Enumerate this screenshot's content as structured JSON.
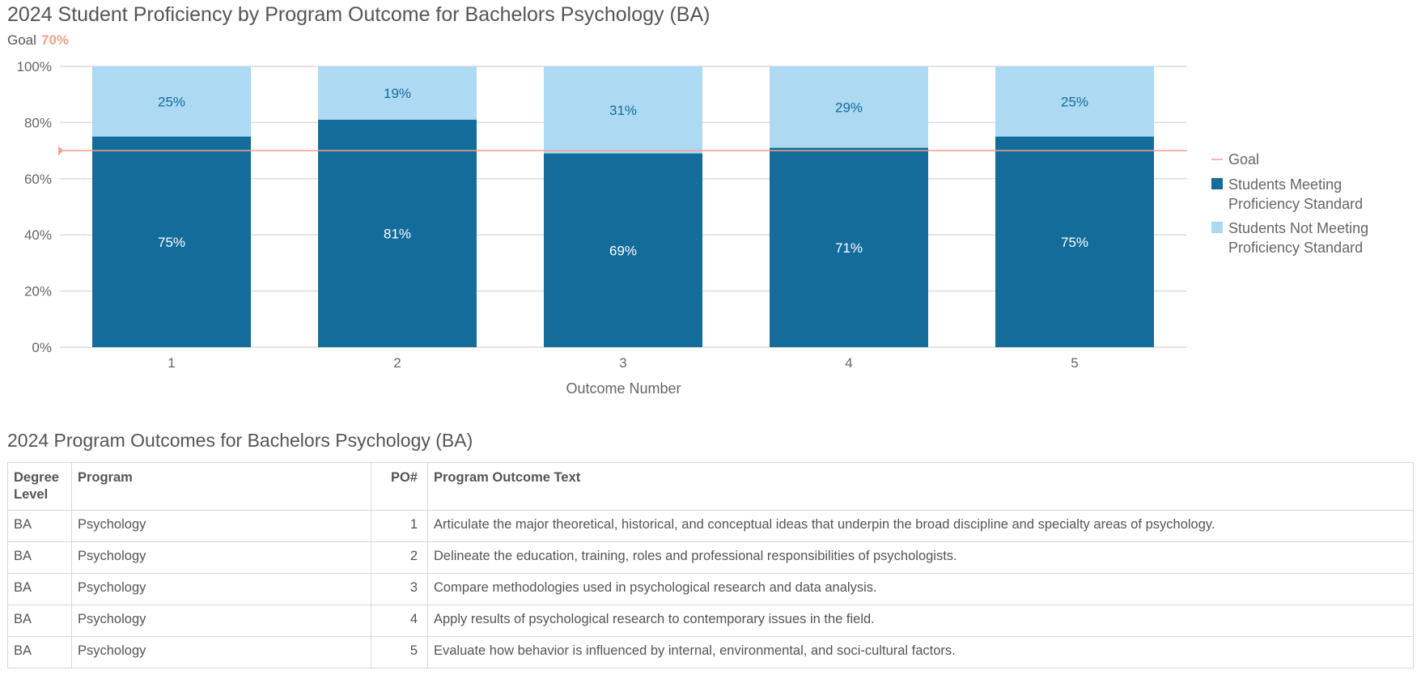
{
  "title": "2024 Student Proficiency by Program Outcome for Bachelors Psychology (BA)",
  "goal": {
    "label": "Goal",
    "value": "70%"
  },
  "colors": {
    "meeting": "#146c9a",
    "not_meeting": "#add9f3",
    "goal": "#f4a08a"
  },
  "chart_data": {
    "type": "bar",
    "stacked": true,
    "categories": [
      "1",
      "2",
      "3",
      "4",
      "5"
    ],
    "xlabel": "Outcome Number",
    "ylabel": "",
    "ylim": [
      0,
      100
    ],
    "yticks": [
      "0%",
      "20%",
      "40%",
      "60%",
      "80%",
      "100%"
    ],
    "grid": true,
    "legend": "right",
    "goal_line": 70,
    "series": [
      {
        "name": "Students Meeting Proficiency Standard",
        "values": [
          75,
          81,
          69,
          71,
          75
        ],
        "labels": [
          "75%",
          "81%",
          "69%",
          "71%",
          "75%"
        ]
      },
      {
        "name": "Students Not Meeting Proficiency Standard",
        "values": [
          25,
          19,
          31,
          29,
          25
        ],
        "labels": [
          "25%",
          "19%",
          "31%",
          "29%",
          "25%"
        ]
      }
    ],
    "legend_entries": [
      "Goal",
      "Students Meeting Proficiency Standard",
      "Students Not Meeting Proficiency Standard"
    ]
  },
  "table": {
    "title": "2024 Program Outcomes for Bachelors Psychology (BA)",
    "headers": [
      "Degree Level",
      "Program",
      "PO#",
      "Program Outcome Text"
    ],
    "rows": [
      [
        "BA",
        "Psychology",
        "1",
        "Articulate the major theoretical, historical, and conceptual ideas that underpin the broad discipline and specialty areas of psychology."
      ],
      [
        "BA",
        "Psychology",
        "2",
        "Delineate the education, training, roles and professional responsibilities of psychologists."
      ],
      [
        "BA",
        "Psychology",
        "3",
        "Compare methodologies used in psychological research and data analysis."
      ],
      [
        "BA",
        "Psychology",
        "4",
        "Apply results of psychological research to contemporary issues in the field."
      ],
      [
        "BA",
        "Psychology",
        "5",
        "Evaluate how behavior is influenced by internal, environmental, and soci-cultural factors."
      ]
    ]
  }
}
